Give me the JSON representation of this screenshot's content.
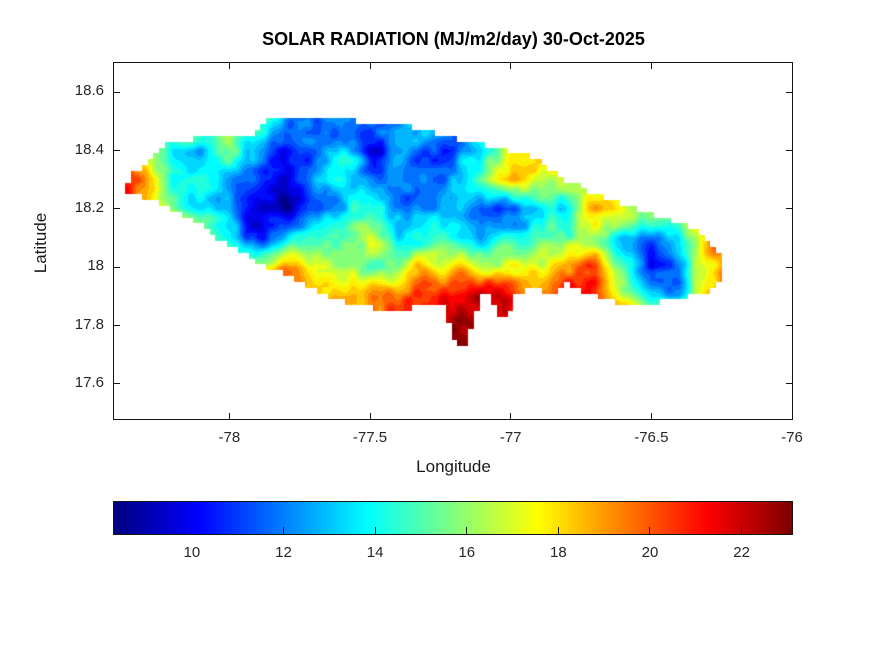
{
  "figure": {
    "background": "#ffffff"
  },
  "axes_style": {
    "axis_line_color": "#151515",
    "tick_label_color": "#262626",
    "title_color": "#000000"
  },
  "chart_data": {
    "type": "heatmap",
    "subtype": "filled-contour",
    "title": "SOLAR RADIATION (MJ/m2/day) 30-Oct-2025",
    "xlabel": "Longitude",
    "ylabel": "Latitude",
    "units": "MJ/m2/day",
    "date": "30-Oct-2025",
    "region_shape": "Jamaica",
    "xlim": [
      -78.41,
      -76.0
    ],
    "ylim": [
      17.48,
      18.7
    ],
    "xticks": [
      -78,
      -77.5,
      -77,
      -76.5,
      -76
    ],
    "yticks": [
      18.6,
      18.4,
      18.2,
      18,
      17.8,
      17.6
    ],
    "grid_lines": false,
    "colorbar": {
      "orientation": "horizontal",
      "colormap": "jet",
      "clim": [
        8.3,
        23.1
      ],
      "ticks": [
        10,
        12,
        14,
        16,
        18,
        20,
        22
      ]
    },
    "grid": {
      "lons": [
        -78.4,
        -78.3,
        -78.2,
        -78.1,
        -78.0,
        -77.9,
        -77.8,
        -77.7,
        -77.6,
        -77.5,
        -77.4,
        -77.3,
        -77.2,
        -77.1,
        -77.0,
        -76.9,
        -76.8,
        -76.7,
        -76.6,
        -76.5,
        -76.4,
        -76.3,
        -76.2,
        -76.1,
        -76.0
      ],
      "lats": [
        18.7,
        18.6,
        18.5,
        18.4,
        18.3,
        18.2,
        18.1,
        18.0,
        17.9,
        17.8,
        17.7,
        17.6,
        17.5
      ],
      "values": [
        [
          16,
          16,
          15,
          15,
          16,
          14,
          12,
          12,
          13,
          12,
          13,
          14,
          13,
          15,
          17,
          18,
          19,
          19,
          19,
          20,
          20,
          21,
          21,
          21,
          21
        ],
        [
          16,
          17,
          15,
          15,
          16,
          15,
          12,
          12,
          13,
          12,
          13,
          14,
          13,
          15,
          17,
          18,
          19,
          19,
          19,
          20,
          20,
          21,
          21,
          21,
          21
        ],
        [
          17,
          18,
          16,
          15,
          17,
          16,
          12,
          11,
          13,
          12,
          13,
          14,
          13,
          15,
          17,
          18,
          20,
          19,
          18,
          19,
          20,
          21,
          21,
          21,
          21
        ],
        [
          19,
          18,
          14,
          13,
          15,
          12,
          10,
          12,
          13,
          10,
          12,
          12,
          11,
          13,
          17,
          19,
          19,
          18,
          17,
          19,
          20,
          21,
          21,
          21,
          21
        ],
        [
          21,
          19,
          15,
          14,
          13,
          11,
          10,
          13,
          14,
          13,
          11,
          11,
          13,
          16,
          19,
          18,
          17,
          16,
          15,
          18,
          20,
          21,
          21,
          21,
          21
        ],
        [
          20,
          19,
          16,
          14,
          12,
          10,
          9,
          12,
          13,
          14,
          13,
          12,
          13,
          11,
          12,
          13,
          14,
          18,
          17,
          16,
          17,
          20,
          21,
          21,
          21
        ],
        [
          19,
          20,
          18,
          16,
          13,
          10,
          12,
          15,
          15,
          17,
          13,
          14,
          14,
          13,
          14,
          15,
          15,
          16,
          13,
          12,
          13,
          18,
          21,
          22,
          22
        ],
        [
          18,
          19,
          19,
          18,
          16,
          17,
          19,
          18,
          16,
          15,
          16,
          18,
          18,
          17,
          18,
          18,
          19,
          20,
          14,
          10,
          12,
          18,
          21,
          22,
          22
        ],
        [
          20,
          20,
          20,
          19,
          19,
          18,
          19,
          18,
          18,
          19,
          20,
          21,
          22,
          22,
          21,
          20,
          21,
          21,
          17,
          14,
          13,
          19,
          22,
          22,
          22
        ],
        [
          21,
          21,
          21,
          20,
          20,
          19,
          19,
          19,
          20,
          21,
          22,
          22,
          23,
          22,
          22,
          21,
          22,
          22,
          21,
          19,
          20,
          21,
          22,
          22,
          22
        ],
        [
          21,
          21,
          21,
          21,
          21,
          20,
          20,
          20,
          21,
          21,
          22,
          23,
          23,
          23,
          22,
          22,
          22,
          22,
          22,
          21,
          21,
          22,
          22,
          22,
          22
        ],
        [
          21,
          21,
          21,
          21,
          21,
          20,
          20,
          20,
          21,
          21,
          22,
          23,
          23,
          23,
          22,
          22,
          22,
          22,
          22,
          21,
          21,
          22,
          22,
          22,
          22
        ],
        [
          21,
          21,
          21,
          21,
          21,
          20,
          20,
          20,
          21,
          21,
          22,
          23,
          23,
          23,
          22,
          22,
          22,
          22,
          22,
          21,
          21,
          22,
          22,
          22,
          22
        ]
      ]
    },
    "outline_lonlat": [
      [
        -78.37,
        18.26
      ],
      [
        -78.34,
        18.33
      ],
      [
        -78.28,
        18.36
      ],
      [
        -78.23,
        18.43
      ],
      [
        -78.13,
        18.44
      ],
      [
        -78.02,
        18.45
      ],
      [
        -77.9,
        18.46
      ],
      [
        -77.87,
        18.51
      ],
      [
        -77.7,
        18.51
      ],
      [
        -77.55,
        18.5
      ],
      [
        -77.35,
        18.48
      ],
      [
        -77.18,
        18.44
      ],
      [
        -77.05,
        18.41
      ],
      [
        -76.92,
        18.38
      ],
      [
        -76.82,
        18.31
      ],
      [
        -76.72,
        18.26
      ],
      [
        -76.58,
        18.21
      ],
      [
        -76.45,
        18.17
      ],
      [
        -76.35,
        18.13
      ],
      [
        -76.26,
        18.06
      ],
      [
        -76.24,
        17.98
      ],
      [
        -76.28,
        17.92
      ],
      [
        -76.4,
        17.89
      ],
      [
        -76.52,
        17.87
      ],
      [
        -76.63,
        17.88
      ],
      [
        -76.73,
        17.91
      ],
      [
        -76.8,
        17.95
      ],
      [
        -76.86,
        17.9
      ],
      [
        -76.93,
        17.94
      ],
      [
        -76.98,
        17.9
      ],
      [
        -77.0,
        17.84
      ],
      [
        -77.05,
        17.83
      ],
      [
        -77.07,
        17.91
      ],
      [
        -77.11,
        17.9
      ],
      [
        -77.13,
        17.81
      ],
      [
        -77.17,
        17.71
      ],
      [
        -77.21,
        17.77
      ],
      [
        -77.23,
        17.86
      ],
      [
        -77.29,
        17.88
      ],
      [
        -77.38,
        17.85
      ],
      [
        -77.48,
        17.86
      ],
      [
        -77.6,
        17.88
      ],
      [
        -77.7,
        17.93
      ],
      [
        -77.8,
        17.97
      ],
      [
        -77.92,
        18.03
      ],
      [
        -78.04,
        18.1
      ],
      [
        -78.14,
        18.17
      ],
      [
        -78.24,
        18.22
      ]
    ],
    "render_hints": {
      "noise_amplitude": 1.7,
      "contour_step": 0.5,
      "coast_cell_deg": 0.02,
      "noise_scale_deg": [
        0.075,
        0.032
      ]
    }
  }
}
